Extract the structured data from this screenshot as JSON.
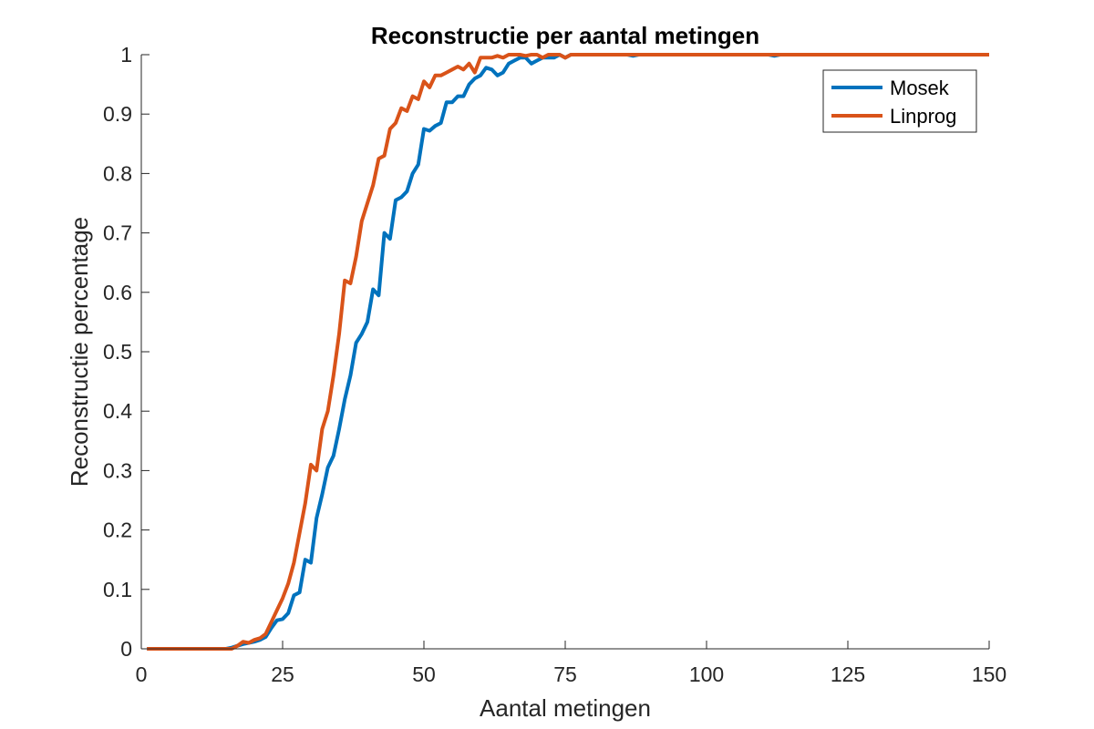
{
  "chart_data": {
    "type": "line",
    "title": "Reconstructie per aantal metingen",
    "xlabel": "Aantal metingen",
    "ylabel": "Reconstructie percentage",
    "xlim": [
      0,
      150
    ],
    "ylim": [
      0,
      1
    ],
    "xticks": [
      0,
      25,
      50,
      75,
      100,
      125,
      150
    ],
    "yticks": [
      0,
      0.1,
      0.2,
      0.3,
      0.4,
      0.5,
      0.6,
      0.7,
      0.8,
      0.9,
      1
    ],
    "ytick_labels": [
      "0",
      "0.1",
      "0.2",
      "0.3",
      "0.4",
      "0.5",
      "0.6",
      "0.7",
      "0.8",
      "0.9",
      "1"
    ],
    "grid": false,
    "legend_position": "top-right",
    "series": [
      {
        "name": "Mosek",
        "color": "#0072BD",
        "x": [
          1,
          2,
          3,
          4,
          5,
          6,
          7,
          8,
          9,
          10,
          11,
          12,
          13,
          14,
          15,
          16,
          17,
          18,
          19,
          20,
          21,
          22,
          23,
          24,
          25,
          26,
          27,
          28,
          29,
          30,
          31,
          32,
          33,
          34,
          35,
          36,
          37,
          38,
          39,
          40,
          41,
          42,
          43,
          44,
          45,
          46,
          47,
          48,
          49,
          50,
          51,
          52,
          53,
          54,
          55,
          56,
          57,
          58,
          59,
          60,
          61,
          62,
          63,
          64,
          65,
          66,
          67,
          68,
          69,
          70,
          71,
          72,
          73,
          74,
          75,
          76,
          77,
          78,
          79,
          80,
          81,
          82,
          83,
          84,
          85,
          86,
          87,
          88,
          89,
          90,
          91,
          92,
          93,
          94,
          95,
          96,
          97,
          98,
          99,
          100,
          110,
          111,
          112,
          113,
          114,
          120,
          130,
          140,
          150
        ],
        "y": [
          0,
          0,
          0,
          0,
          0,
          0,
          0,
          0,
          0,
          0,
          0,
          0,
          0,
          0,
          0,
          0.002,
          0.005,
          0.008,
          0.01,
          0.012,
          0.015,
          0.02,
          0.035,
          0.048,
          0.05,
          0.06,
          0.09,
          0.095,
          0.15,
          0.145,
          0.22,
          0.26,
          0.305,
          0.325,
          0.37,
          0.42,
          0.46,
          0.515,
          0.53,
          0.55,
          0.605,
          0.595,
          0.7,
          0.69,
          0.755,
          0.76,
          0.77,
          0.8,
          0.815,
          0.875,
          0.872,
          0.88,
          0.885,
          0.92,
          0.92,
          0.93,
          0.93,
          0.95,
          0.96,
          0.965,
          0.978,
          0.975,
          0.965,
          0.97,
          0.985,
          0.99,
          0.995,
          0.995,
          0.985,
          0.99,
          0.995,
          0.995,
          0.995,
          1,
          0.995,
          1,
          1,
          1,
          1,
          1,
          1,
          1,
          1,
          1,
          1,
          1,
          0.998,
          1,
          1,
          1,
          1,
          1,
          1,
          1,
          1,
          1,
          1,
          1,
          1,
          1,
          1,
          1,
          0.998,
          1,
          1,
          1,
          1,
          1,
          1
        ]
      },
      {
        "name": "Linprog",
        "color": "#D95319",
        "x": [
          1,
          2,
          3,
          4,
          5,
          6,
          7,
          8,
          9,
          10,
          11,
          12,
          13,
          14,
          15,
          16,
          17,
          18,
          19,
          20,
          21,
          22,
          23,
          24,
          25,
          26,
          27,
          28,
          29,
          30,
          31,
          32,
          33,
          34,
          35,
          36,
          37,
          38,
          39,
          40,
          41,
          42,
          43,
          44,
          45,
          46,
          47,
          48,
          49,
          50,
          51,
          52,
          53,
          54,
          55,
          56,
          57,
          58,
          59,
          60,
          61,
          62,
          63,
          64,
          65,
          66,
          67,
          68,
          69,
          70,
          71,
          72,
          73,
          74,
          75,
          76,
          77,
          78,
          79,
          80,
          81,
          82,
          83,
          84,
          85,
          86,
          87,
          88,
          89,
          90,
          100,
          110,
          120,
          130,
          140,
          150
        ],
        "y": [
          0,
          0,
          0,
          0,
          0,
          0,
          0,
          0,
          0,
          0,
          0,
          0,
          0,
          0,
          0,
          0,
          0.005,
          0.012,
          0.01,
          0.015,
          0.018,
          0.025,
          0.045,
          0.065,
          0.085,
          0.11,
          0.145,
          0.195,
          0.245,
          0.31,
          0.3,
          0.37,
          0.4,
          0.46,
          0.53,
          0.62,
          0.615,
          0.66,
          0.72,
          0.75,
          0.78,
          0.825,
          0.83,
          0.875,
          0.885,
          0.91,
          0.905,
          0.93,
          0.925,
          0.955,
          0.945,
          0.965,
          0.965,
          0.97,
          0.975,
          0.98,
          0.975,
          0.985,
          0.97,
          0.995,
          0.995,
          0.995,
          0.998,
          0.995,
          1,
          1,
          1,
          0.998,
          1,
          1,
          0.995,
          1,
          1,
          1,
          0.995,
          1,
          1,
          1,
          1,
          1,
          1,
          1,
          1,
          1,
          1,
          1,
          1,
          1,
          1,
          1,
          1,
          1,
          1,
          1,
          1,
          1
        ]
      }
    ]
  }
}
